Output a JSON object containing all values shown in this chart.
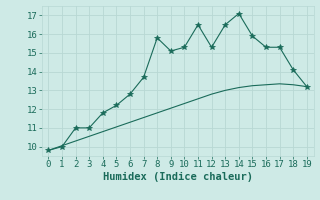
{
  "x": [
    0,
    1,
    2,
    3,
    4,
    5,
    6,
    7,
    8,
    9,
    10,
    11,
    12,
    13,
    14,
    15,
    16,
    17,
    18,
    19
  ],
  "y_curve": [
    9.8,
    10.0,
    11.0,
    11.0,
    11.8,
    12.2,
    12.8,
    13.7,
    15.8,
    15.1,
    15.3,
    16.5,
    15.3,
    16.5,
    17.1,
    15.9,
    15.3,
    15.3,
    14.1,
    13.2
  ],
  "y_trend": [
    9.8,
    10.05,
    10.3,
    10.55,
    10.8,
    11.05,
    11.3,
    11.55,
    11.8,
    12.05,
    12.3,
    12.55,
    12.8,
    13.0,
    13.15,
    13.25,
    13.3,
    13.35,
    13.3,
    13.2
  ],
  "xlabel": "Humidex (Indice chaleur)",
  "ylim": [
    9.5,
    17.5
  ],
  "xlim": [
    -0.5,
    19.5
  ],
  "yticks": [
    10,
    11,
    12,
    13,
    14,
    15,
    16,
    17
  ],
  "xticks": [
    0,
    1,
    2,
    3,
    4,
    5,
    6,
    7,
    8,
    9,
    10,
    11,
    12,
    13,
    14,
    15,
    16,
    17,
    18,
    19
  ],
  "line_color": "#1a6b5a",
  "bg_color": "#ceeae6",
  "grid_color": "#b8d8d4",
  "marker": "*",
  "marker_size": 4,
  "tick_fontsize": 6.5,
  "xlabel_fontsize": 7.5
}
